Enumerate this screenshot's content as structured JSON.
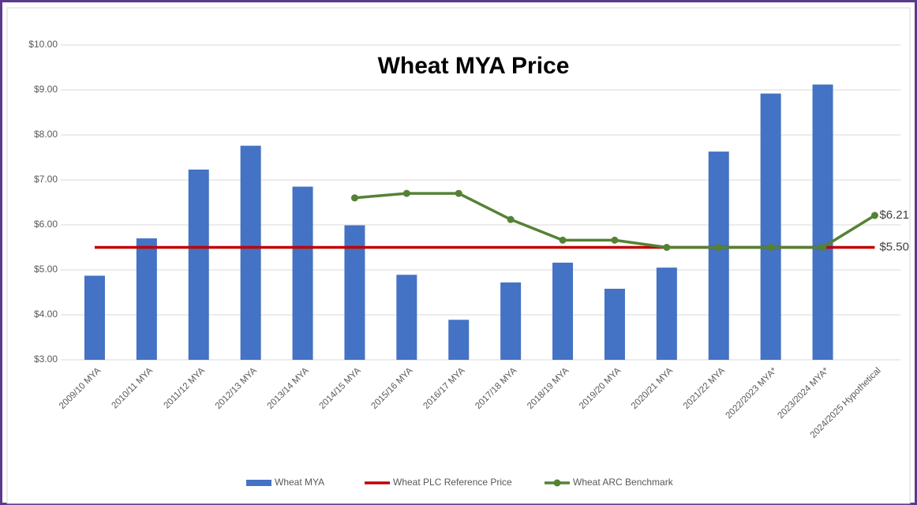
{
  "chart_data": {
    "type": "bar_line",
    "title": "Wheat MYA Price",
    "categories": [
      "2009/10 MYA",
      "2010/11 MYA",
      "2011/12 MYA",
      "2012/13 MYA",
      "2013/14 MYA",
      "2014/15 MYA",
      "2015/16 MYA",
      "2016/17 MYA",
      "2017/18 MYA",
      "2018/19 MYA",
      "2019/20 MYA",
      "2020/21 MYA",
      "2021/22 MYA",
      "2022/2023 MYA*",
      "2023/2024 MYA*",
      "2024/2025 Hypothetical"
    ],
    "series": [
      {
        "name": "Wheat MYA",
        "type": "bar",
        "color": "#4472c4",
        "values": [
          4.87,
          5.7,
          7.23,
          7.76,
          6.85,
          5.99,
          4.89,
          3.89,
          4.72,
          5.16,
          4.58,
          5.05,
          7.63,
          8.92,
          9.12,
          null
        ]
      },
      {
        "name": "Wheat PLC Reference Price",
        "type": "line",
        "color": "#c00000",
        "values": [
          5.5,
          5.5,
          5.5,
          5.5,
          5.5,
          5.5,
          5.5,
          5.5,
          5.5,
          5.5,
          5.5,
          5.5,
          5.5,
          5.5,
          5.5,
          5.5
        ],
        "value_labels": [
          null,
          null,
          null,
          null,
          null,
          null,
          null,
          null,
          null,
          null,
          null,
          null,
          null,
          null,
          null,
          "$5.50"
        ]
      },
      {
        "name": "Wheat ARC Benchmark",
        "type": "line",
        "color": "#548235",
        "markers": true,
        "values": [
          null,
          null,
          null,
          null,
          null,
          6.6,
          6.7,
          6.7,
          6.12,
          5.66,
          5.66,
          5.5,
          5.5,
          5.5,
          5.5,
          6.21
        ],
        "value_labels": [
          null,
          null,
          null,
          null,
          null,
          null,
          null,
          null,
          null,
          null,
          null,
          null,
          null,
          null,
          null,
          "$6.21"
        ]
      }
    ],
    "ylim": [
      3,
      10
    ],
    "yticks": [
      {
        "value": 3,
        "label": "$3.00"
      },
      {
        "value": 4,
        "label": "$4.00"
      },
      {
        "value": 5,
        "label": "$5.00"
      },
      {
        "value": 6,
        "label": "$6.00"
      },
      {
        "value": 7,
        "label": "$7.00"
      },
      {
        "value": 8,
        "label": "$8.00"
      },
      {
        "value": 9,
        "label": "$9.00"
      },
      {
        "value": 10,
        "label": "$10.00"
      }
    ],
    "grid": true,
    "legend": "bottom"
  }
}
